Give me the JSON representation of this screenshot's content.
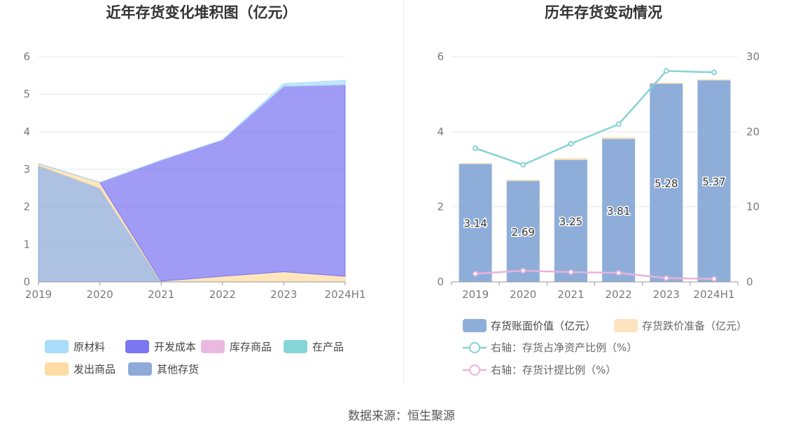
{
  "source": "数据来源：恒生聚源",
  "chart_data": [
    {
      "type": "area",
      "stacked": true,
      "title": "近年存货变化堆积图（亿元）",
      "categories": [
        "2019",
        "2020",
        "2021",
        "2022",
        "2023",
        "2024H1"
      ],
      "ylim": [
        0,
        6
      ],
      "yticks": [
        "0",
        "1",
        "2",
        "3",
        "4",
        "5",
        "6"
      ],
      "grid": true,
      "legend_position": "bottom",
      "series": [
        {
          "name": "其他存货",
          "color": "#8eaad8",
          "values": [
            3.1,
            2.5,
            0.0,
            0.0,
            0.0,
            0.0
          ]
        },
        {
          "name": "发出商品",
          "color": "#ffdca3",
          "values": [
            0.05,
            0.15,
            0.02,
            0.15,
            0.27,
            0.15
          ]
        },
        {
          "name": "在产品",
          "color": "#84d5d8",
          "values": [
            0.0,
            0.0,
            0.0,
            0.0,
            0.0,
            0.0
          ]
        },
        {
          "name": "库存商品",
          "color": "#e9b9df",
          "values": [
            0.0,
            0.0,
            0.0,
            0.0,
            0.0,
            0.0
          ]
        },
        {
          "name": "开发成本",
          "color": "#7b76f2",
          "values": [
            0.0,
            0.0,
            3.22,
            3.63,
            4.94,
            5.1
          ]
        },
        {
          "name": "原材料",
          "color": "#a9dcf8",
          "values": [
            0.0,
            0.0,
            0.0,
            0.0,
            0.07,
            0.12
          ]
        }
      ],
      "legend_order": [
        "原材料",
        "开发成本",
        "库存商品",
        "在产品",
        "发出商品",
        "其他存货"
      ]
    },
    {
      "type": "bar",
      "title": "历年存货变动情况",
      "categories": [
        "2019",
        "2020",
        "2021",
        "2022",
        "2023",
        "2024H1"
      ],
      "ylim": [
        0,
        6
      ],
      "yticks": [
        "0",
        "2",
        "4",
        "6"
      ],
      "y2lim": [
        0,
        30
      ],
      "y2ticks": [
        "0",
        "10",
        "20",
        "30"
      ],
      "grid": true,
      "legend_position": "bottom",
      "series": [
        {
          "name": "存货账面价值（亿元）",
          "color": "#8eaed9",
          "values": [
            3.14,
            2.69,
            3.25,
            3.81,
            5.28,
            5.37
          ],
          "labels": [
            "3.14",
            "2.69",
            "3.25",
            "3.81",
            "5.28",
            "5.37"
          ]
        },
        {
          "name": "存货跌价准备（亿元）",
          "color": "#fde4bf",
          "values": [
            0.03,
            0.04,
            0.05,
            0.05,
            0.03,
            0.03
          ]
        },
        {
          "name": "右轴：存货占净资产比例（%）",
          "color": "#86d3d5",
          "type": "line",
          "axis": "right",
          "values": [
            17.8,
            15.6,
            18.4,
            21.0,
            28.1,
            27.9
          ]
        },
        {
          "name": "右轴：存货计提比例（%）",
          "color": "#e8b3da",
          "type": "line",
          "axis": "right",
          "values": [
            1.1,
            1.5,
            1.3,
            1.2,
            0.5,
            0.4
          ]
        }
      ]
    }
  ]
}
